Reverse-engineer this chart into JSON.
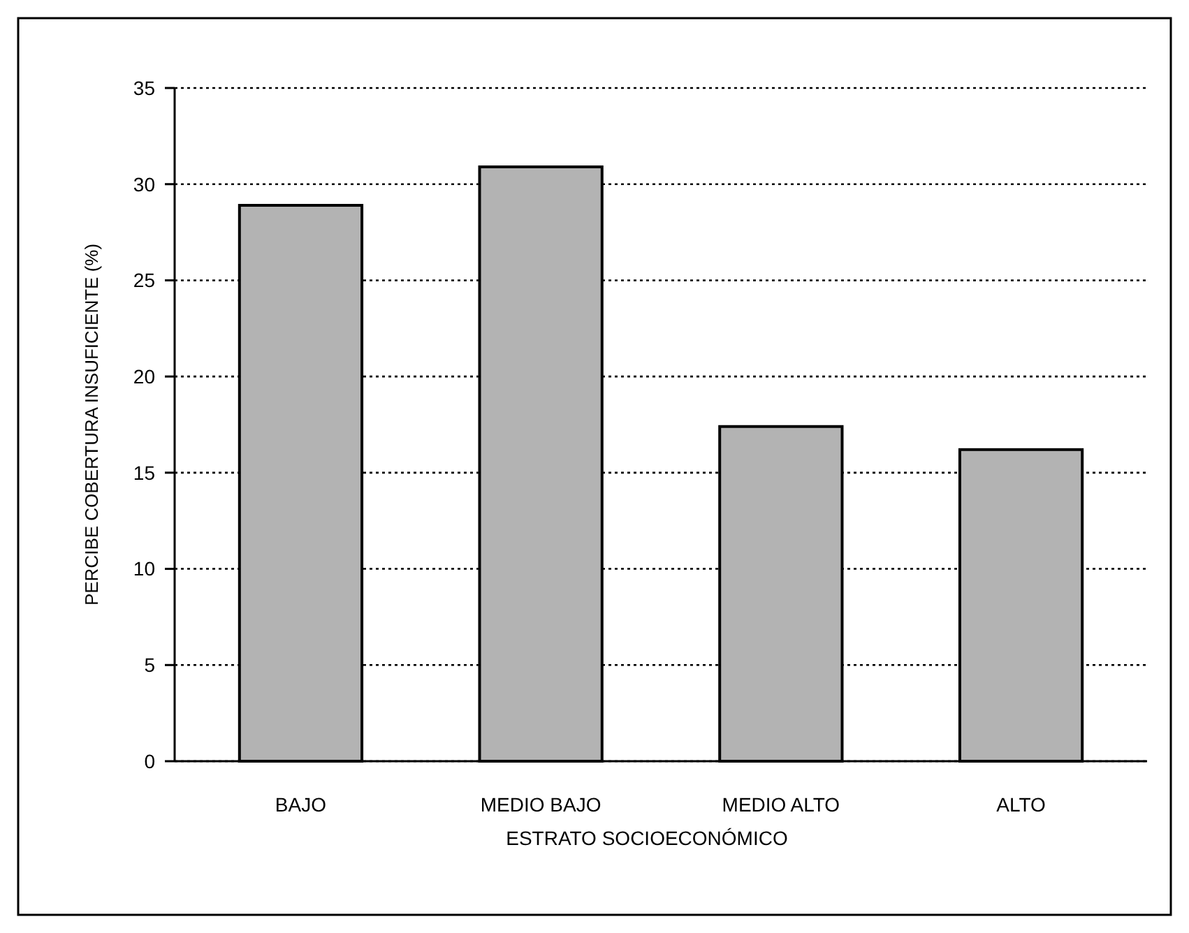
{
  "chart_data": {
    "type": "bar",
    "xlabel": "ESTRATO SOCIOECONÓMICO",
    "ylabel": "PERCIBE COBERTURA INSUFICIENTE (%)",
    "categories": [
      "BAJO",
      "MEDIO BAJO",
      "MEDIO ALTO",
      "ALTO"
    ],
    "values": [
      28.9,
      30.9,
      17.4,
      16.2
    ],
    "color": "#b3b3b3",
    "ylim": [
      0,
      35
    ],
    "yticks": [
      0,
      5,
      10,
      15,
      20,
      25,
      30,
      35
    ],
    "grid": "y"
  }
}
